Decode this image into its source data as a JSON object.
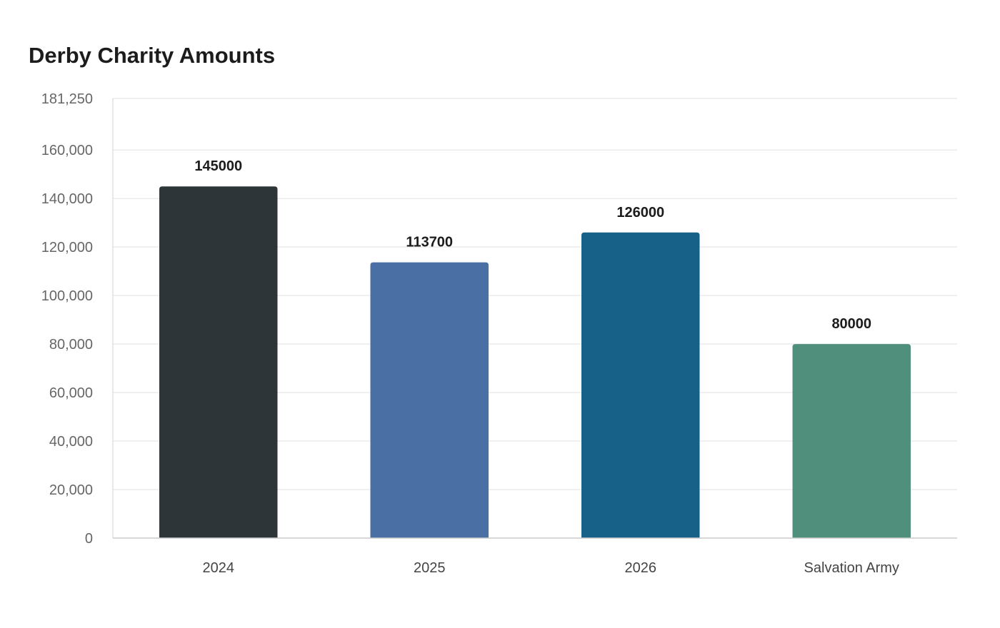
{
  "chart_data": {
    "type": "bar",
    "title": "Derby Charity Amounts",
    "xlabel": "",
    "ylabel": "",
    "categories": [
      "2024",
      "2025",
      "2026",
      "Salvation Army"
    ],
    "values": [
      145000,
      113700,
      126000,
      80000
    ],
    "value_labels": [
      "145000",
      "113700",
      "126000",
      "80000"
    ],
    "colors": [
      "#2e3538",
      "#4a6fa5",
      "#176087",
      "#4f8f7c"
    ],
    "ylim": [
      0,
      181250
    ],
    "yticks": [
      0,
      20000,
      40000,
      60000,
      80000,
      100000,
      120000,
      140000,
      160000,
      181250
    ],
    "ytick_labels": [
      "0",
      "20,000",
      "40,000",
      "60,000",
      "80,000",
      "100,000",
      "120,000",
      "140,000",
      "160,000",
      "181,250"
    ],
    "grid": true,
    "legend": "none"
  }
}
